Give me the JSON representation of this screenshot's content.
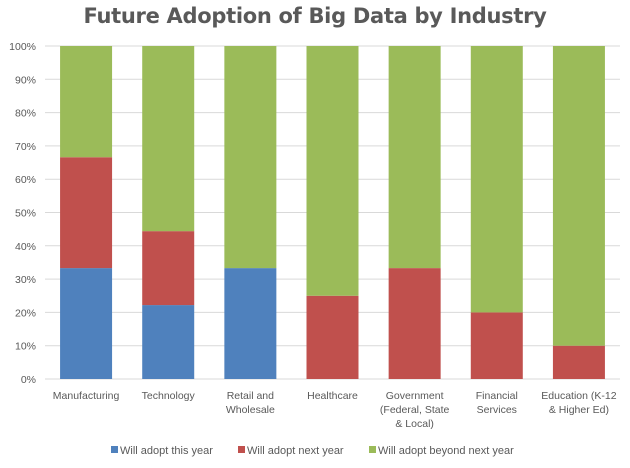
{
  "chart_data": {
    "type": "bar",
    "stacked": true,
    "percent": true,
    "title": "Future Adoption of Big Data by Industry",
    "xlabel": "",
    "ylabel": "",
    "ylim": [
      0,
      100
    ],
    "yticks": [
      "0%",
      "10%",
      "20%",
      "30%",
      "40%",
      "50%",
      "60%",
      "70%",
      "80%",
      "90%",
      "100%"
    ],
    "grid": true,
    "legend_position": "bottom",
    "categories": [
      [
        "Manufacturing"
      ],
      [
        "Technology"
      ],
      [
        "Retail and",
        "Wholesale"
      ],
      [
        "Healthcare"
      ],
      [
        "Government",
        "(Federal, State",
        "& Local)"
      ],
      [
        "Financial",
        "Services"
      ],
      [
        "Education (K-12",
        "& Higher Ed)"
      ]
    ],
    "series": [
      {
        "name": "Will adopt this year",
        "color": "#4f81bd",
        "values": [
          33.3,
          22.2,
          33.3,
          0,
          0,
          0,
          0
        ]
      },
      {
        "name": "Will adopt next year",
        "color": "#c0504d",
        "values": [
          33.3,
          22.2,
          0,
          25,
          33.3,
          20,
          10
        ]
      },
      {
        "name": "Will adopt beyond next year",
        "color": "#9bbb59",
        "values": [
          33.4,
          55.6,
          66.7,
          75,
          66.7,
          80,
          90
        ]
      }
    ]
  }
}
